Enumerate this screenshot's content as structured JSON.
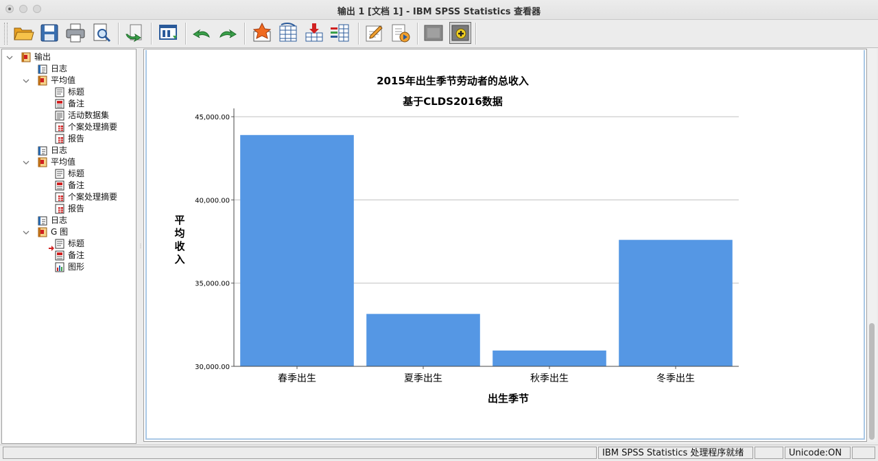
{
  "window": {
    "title": "输出 1 [文档 1] - IBM SPSS Statistics 查看器"
  },
  "toolbar": {
    "buttons": [
      {
        "name": "open-icon"
      },
      {
        "name": "save-icon"
      },
      {
        "name": "print-icon"
      },
      {
        "name": "print-preview-icon"
      },
      {
        "name": "export-icon"
      },
      {
        "name": "recall-dialog-icon"
      },
      {
        "name": "undo-icon"
      },
      {
        "name": "redo-icon"
      },
      {
        "name": "goto-data-icon"
      },
      {
        "name": "goto-case-icon"
      },
      {
        "name": "goto-variable-icon"
      },
      {
        "name": "variables-icon"
      },
      {
        "name": "edit-icon"
      },
      {
        "name": "run-script-icon"
      },
      {
        "name": "hide-icon"
      },
      {
        "name": "show-icon"
      }
    ]
  },
  "tree": {
    "items": [
      {
        "label": "输出",
        "icon": "output-book-icon",
        "level": 0,
        "toggle": "expanded"
      },
      {
        "label": "日志",
        "icon": "log-icon",
        "level": 1
      },
      {
        "label": "平均值",
        "icon": "output-book-icon",
        "level": 1,
        "toggle": "expanded"
      },
      {
        "label": "标题",
        "icon": "title-icon",
        "level": 2
      },
      {
        "label": "备注",
        "icon": "notes-icon",
        "level": 2
      },
      {
        "label": "活动数据集",
        "icon": "text-icon",
        "level": 2
      },
      {
        "label": "个案处理摘要",
        "icon": "table-icon",
        "level": 2
      },
      {
        "label": "报告",
        "icon": "table-icon",
        "level": 2
      },
      {
        "label": "日志",
        "icon": "log-icon",
        "level": 1
      },
      {
        "label": "平均值",
        "icon": "output-book-icon",
        "level": 1,
        "toggle": "expanded"
      },
      {
        "label": "标题",
        "icon": "title-icon",
        "level": 2
      },
      {
        "label": "备注",
        "icon": "notes-icon",
        "level": 2
      },
      {
        "label": "个案处理摘要",
        "icon": "table-icon",
        "level": 2
      },
      {
        "label": "报告",
        "icon": "table-icon",
        "level": 2
      },
      {
        "label": "日志",
        "icon": "log-icon",
        "level": 1
      },
      {
        "label": "G 图",
        "icon": "output-book-icon",
        "level": 1,
        "toggle": "expanded"
      },
      {
        "label": "标题",
        "icon": "title-icon",
        "level": 2,
        "current": true
      },
      {
        "label": "备注",
        "icon": "notes-icon",
        "level": 2
      },
      {
        "label": "图形",
        "icon": "chart-icon",
        "level": 2
      }
    ]
  },
  "status": {
    "processor": "IBM SPSS Statistics 处理程序就绪",
    "unicode": "Unicode:ON"
  },
  "colors": {
    "bar": "#5597e4",
    "grid": "#c0c0c0",
    "selection": "#a9c8e6"
  },
  "chart_data": {
    "type": "bar",
    "title": "2015年出生季节劳动者的总收入",
    "subtitle": "基于CLDS2016数据",
    "xlabel": "出生季节",
    "ylabel": "平均收入",
    "categories": [
      "春季出生",
      "夏季出生",
      "秋季出生",
      "冬季出生"
    ],
    "values": [
      43900,
      33150,
      30950,
      37600
    ],
    "ylim": [
      30000,
      45500
    ],
    "yticks": [
      30000,
      35000,
      40000,
      45000
    ],
    "ytick_labels": [
      "30,000.00",
      "35,000.00",
      "40,000.00",
      "45,000.00"
    ],
    "grid": true,
    "legend": "none"
  }
}
